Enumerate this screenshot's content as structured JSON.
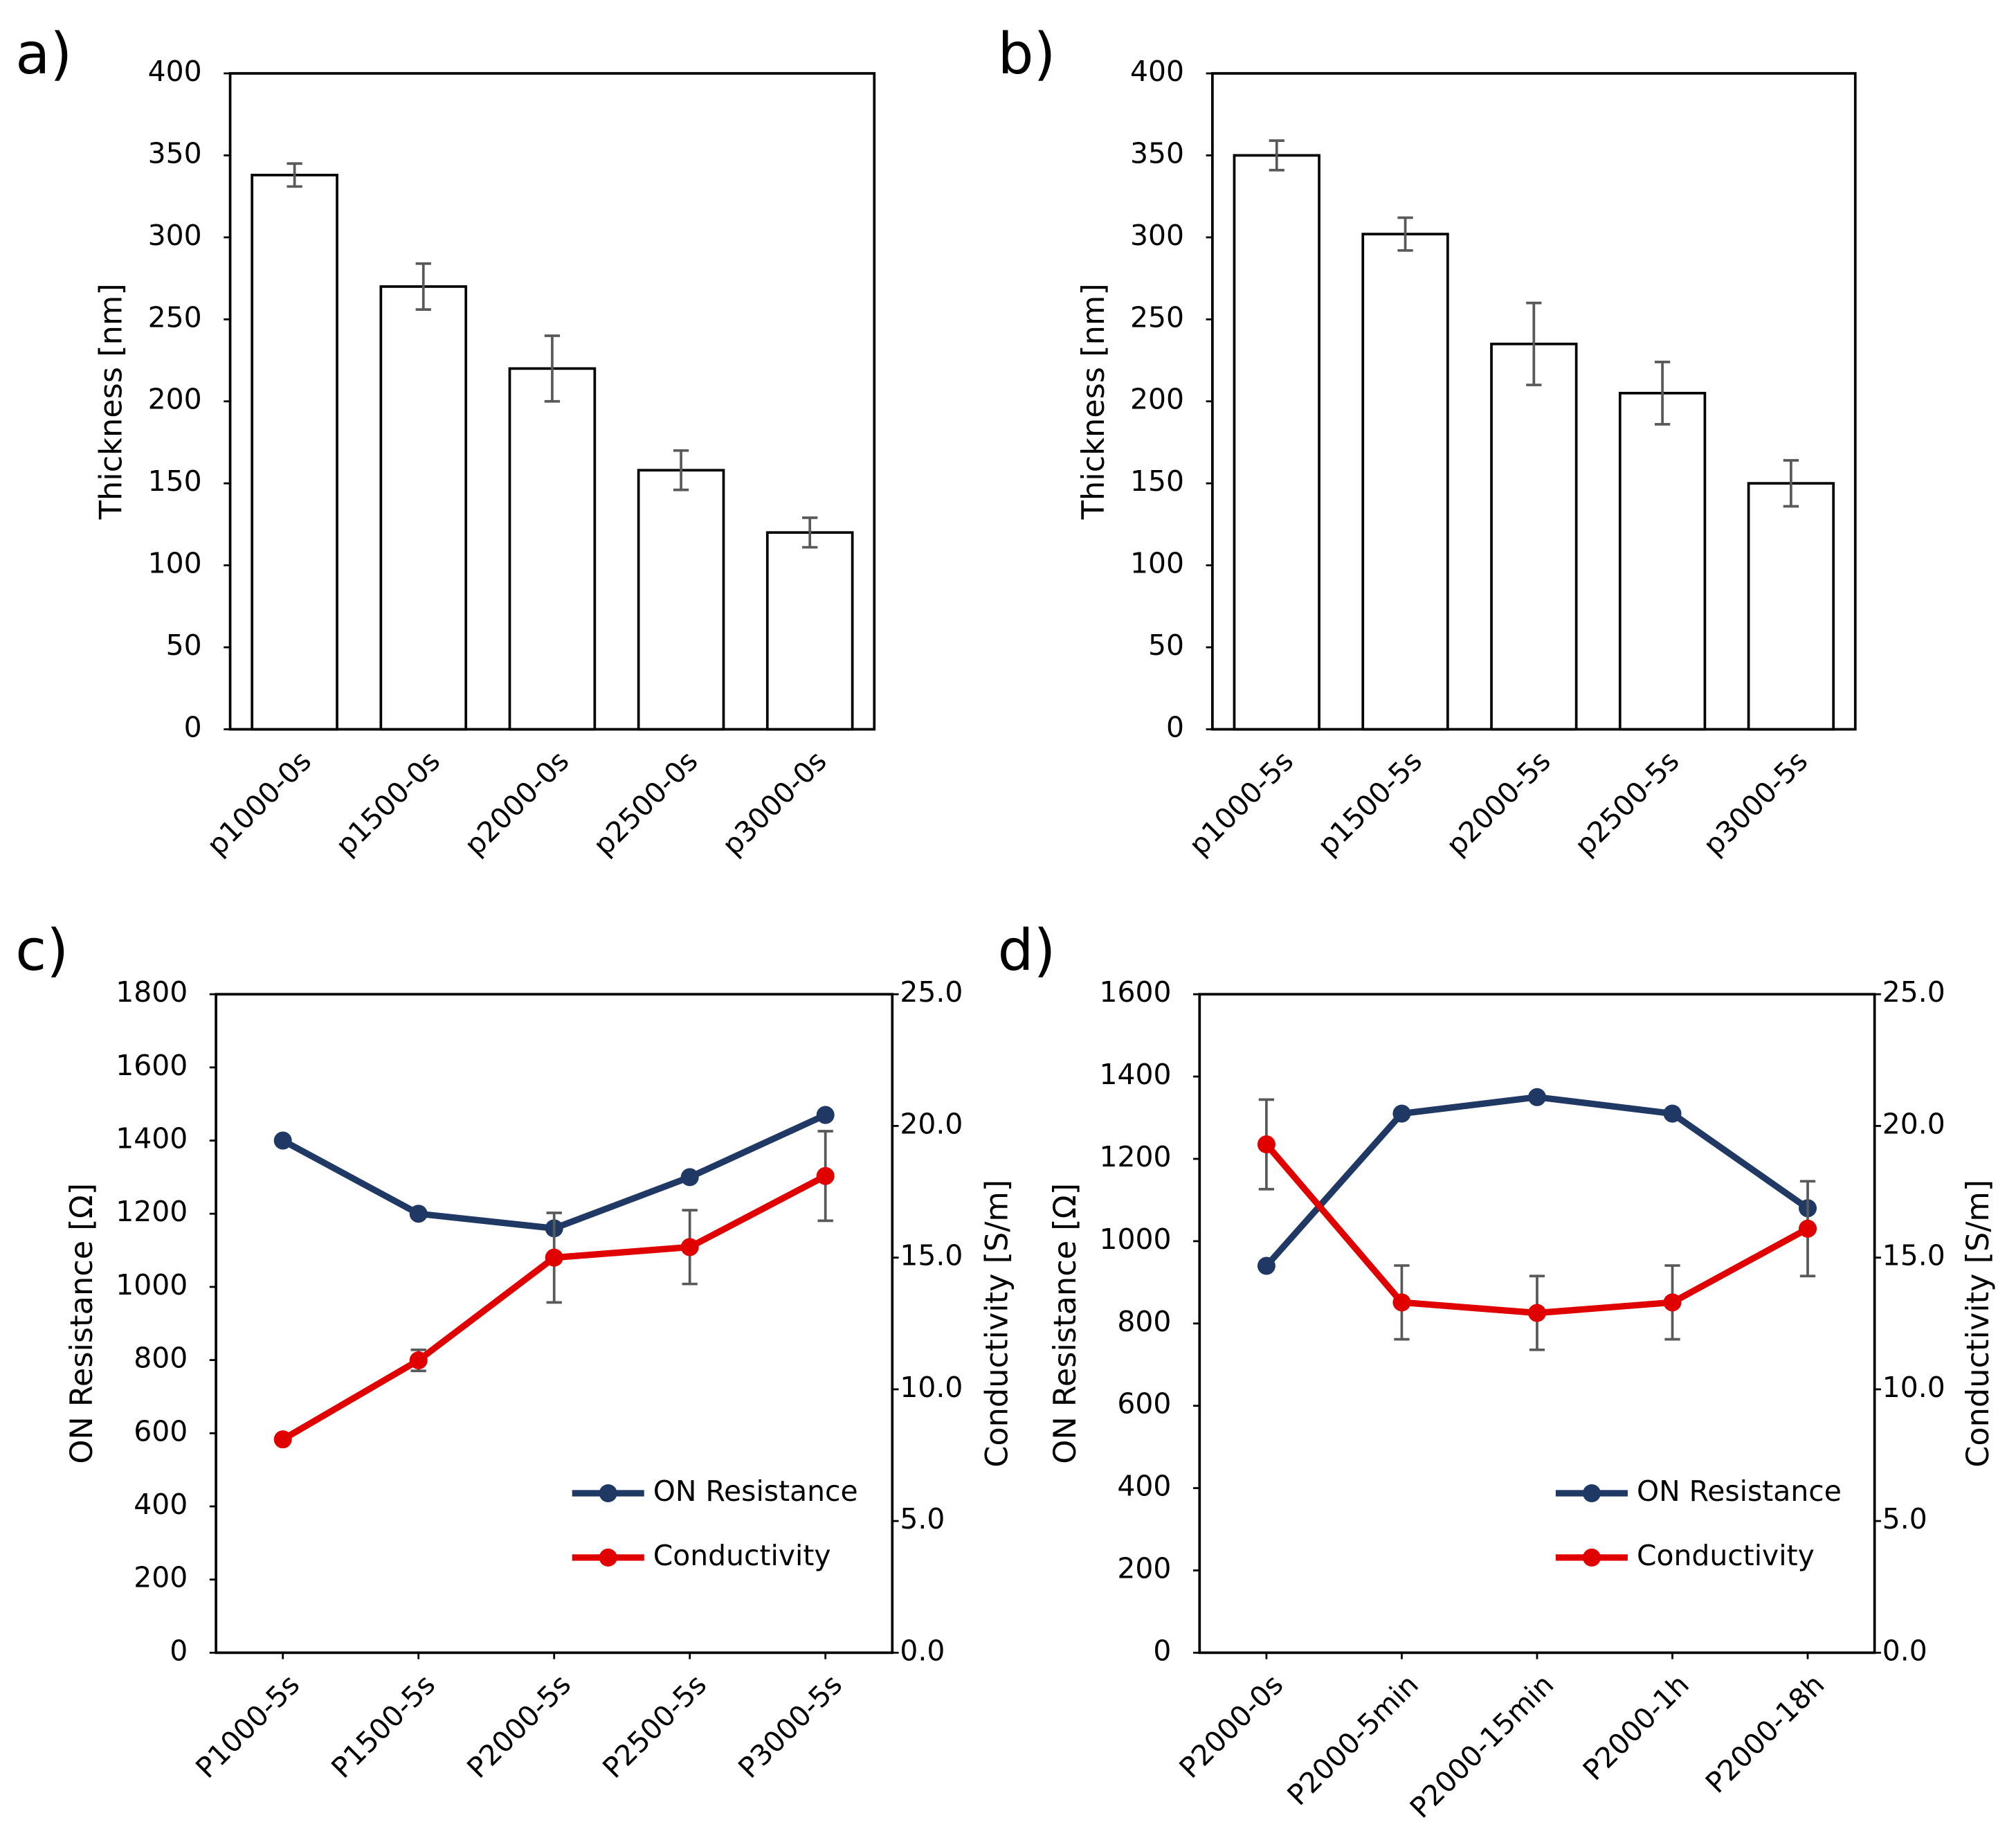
{
  "chart_data": [
    {
      "type": "bar",
      "panel_label": "a)",
      "ylabel": "Thickness [nm]",
      "categories": [
        "p1000-0s",
        "p1500-0s",
        "p2000-0s",
        "p2500-0s",
        "p3000-0s"
      ],
      "values": [
        338,
        270,
        220,
        158,
        120
      ],
      "errors": [
        7,
        14,
        20,
        12,
        9
      ],
      "color": "#ffffff",
      "error_color": "#595959",
      "ylim": [
        0,
        400
      ],
      "yticks": [
        0,
        50,
        100,
        150,
        200,
        250,
        300,
        350,
        400
      ]
    },
    {
      "type": "bar",
      "panel_label": "b)",
      "ylabel": "Thickness [nm]",
      "categories": [
        "p1000-5s",
        "p1500-5s",
        "p2000-5s",
        "p2500-5s",
        "p3000-5s"
      ],
      "values": [
        350,
        302,
        235,
        205,
        150
      ],
      "errors": [
        9,
        10,
        25,
        19,
        14
      ],
      "color": "#ffffff",
      "error_color": "#595959",
      "ylim": [
        0,
        400
      ],
      "yticks": [
        0,
        50,
        100,
        150,
        200,
        250,
        300,
        350,
        400
      ]
    },
    {
      "type": "line",
      "panel_label": "c)",
      "ylabel": "ON Resistance [Ω]",
      "y2label": "Conductivity [S/m]",
      "categories": [
        "P1000-5s",
        "P1500-5s",
        "P2000-5s",
        "P2500-5s",
        "P3000-5s"
      ],
      "series": [
        {
          "name": "ON Resistance",
          "color": "#1f3864",
          "values": [
            1400,
            1200,
            1160,
            1300,
            1470
          ]
        },
        {
          "name": "Conductivity",
          "color": "#e00000",
          "axis": "y2",
          "values": [
            8.1,
            11.1,
            15.0,
            15.4,
            18.1
          ],
          "errors": [
            0.1,
            0.4,
            1.7,
            1.4,
            1.7
          ]
        }
      ],
      "error_color": "#595959",
      "ylim": [
        0,
        1800
      ],
      "yticks": [
        0,
        200,
        400,
        600,
        800,
        1000,
        1200,
        1400,
        1600,
        1800
      ],
      "y2lim": [
        0,
        25
      ],
      "y2ticks": [
        {
          "value": 0,
          "label": "0.0"
        },
        {
          "value": 5,
          "label": "5.0"
        },
        {
          "value": 10,
          "label": "10.0"
        },
        {
          "value": 15,
          "label": "15.0"
        },
        {
          "value": 20,
          "label": "20.0"
        },
        {
          "value": 25,
          "label": "25.0"
        }
      ],
      "legend": "lower right"
    },
    {
      "type": "line",
      "panel_label": "d)",
      "ylabel": "ON Resistance [Ω]",
      "y2label": "Conductivity [S/m]",
      "categories": [
        "P2000-0s",
        "P2000-5min",
        "P2000-15min",
        "P2000-1h",
        "P2000-18h"
      ],
      "series": [
        {
          "name": "ON Resistance",
          "color": "#1f3864",
          "values": [
            940,
            1310,
            1350,
            1310,
            1080
          ]
        },
        {
          "name": "Conductivity",
          "color": "#e00000",
          "axis": "y2",
          "values": [
            19.3,
            13.3,
            12.9,
            13.3,
            16.1
          ],
          "errors": [
            1.7,
            1.4,
            1.4,
            1.4,
            1.8
          ]
        }
      ],
      "error_color": "#595959",
      "ylim": [
        0,
        1600
      ],
      "yticks": [
        0,
        200,
        400,
        600,
        800,
        1000,
        1200,
        1400,
        1600
      ],
      "y2lim": [
        0,
        25
      ],
      "y2ticks": [
        {
          "value": 0,
          "label": "0.0"
        },
        {
          "value": 5,
          "label": "5.0"
        },
        {
          "value": 10,
          "label": "10.0"
        },
        {
          "value": 15,
          "label": "15.0"
        },
        {
          "value": 20,
          "label": "20.0"
        },
        {
          "value": 25,
          "label": "25.0"
        }
      ],
      "legend": "lower right"
    }
  ]
}
